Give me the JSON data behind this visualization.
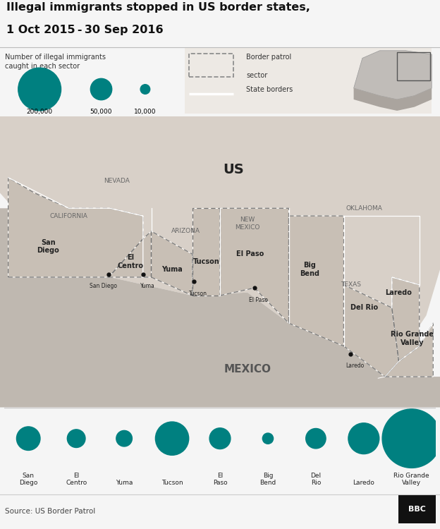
{
  "title_line1": "Illegal immigrants stopped in US border states,",
  "title_line2": "1 Oct 2015 - 30 Sep 2016",
  "legend_text": "Number of illegal immigrants\ncaught in each sector",
  "legend_sizes": [
    200000,
    50000,
    10000
  ],
  "legend_labels": [
    "200,000",
    "50,000",
    "10,000"
  ],
  "border_patrol_label": "Border patrol\nsector",
  "state_borders_label": "State borders",
  "source_text": "Source: US Border Patrol",
  "bbc_text": "BBC",
  "teal_color": "#008080",
  "fig_bg": "#f5f5f5",
  "map_ocean": "#c8c8c8",
  "sector_fill": "#c8bfb5",
  "us_bg": "#d8d0c8",
  "mexico_fill": "#bfb8b0",
  "sectors": [
    {
      "name": "San\nDiego",
      "value": 31891
    },
    {
      "name": "El\nCentro",
      "value": 18633
    },
    {
      "name": "Yuma",
      "value": 14458
    },
    {
      "name": "Tucson",
      "value": 63397
    },
    {
      "name": "El\nPaso",
      "value": 25193
    },
    {
      "name": "Big\nBend",
      "value": 6599
    },
    {
      "name": "Del\nRio",
      "value": 22874
    },
    {
      "name": "Laredo",
      "value": 54474
    },
    {
      "name": "Rio Grande\nValley",
      "value": 197221
    }
  ],
  "lon_min": -125,
  "lon_max": -93,
  "lat_min": 24,
  "lat_max": 43
}
